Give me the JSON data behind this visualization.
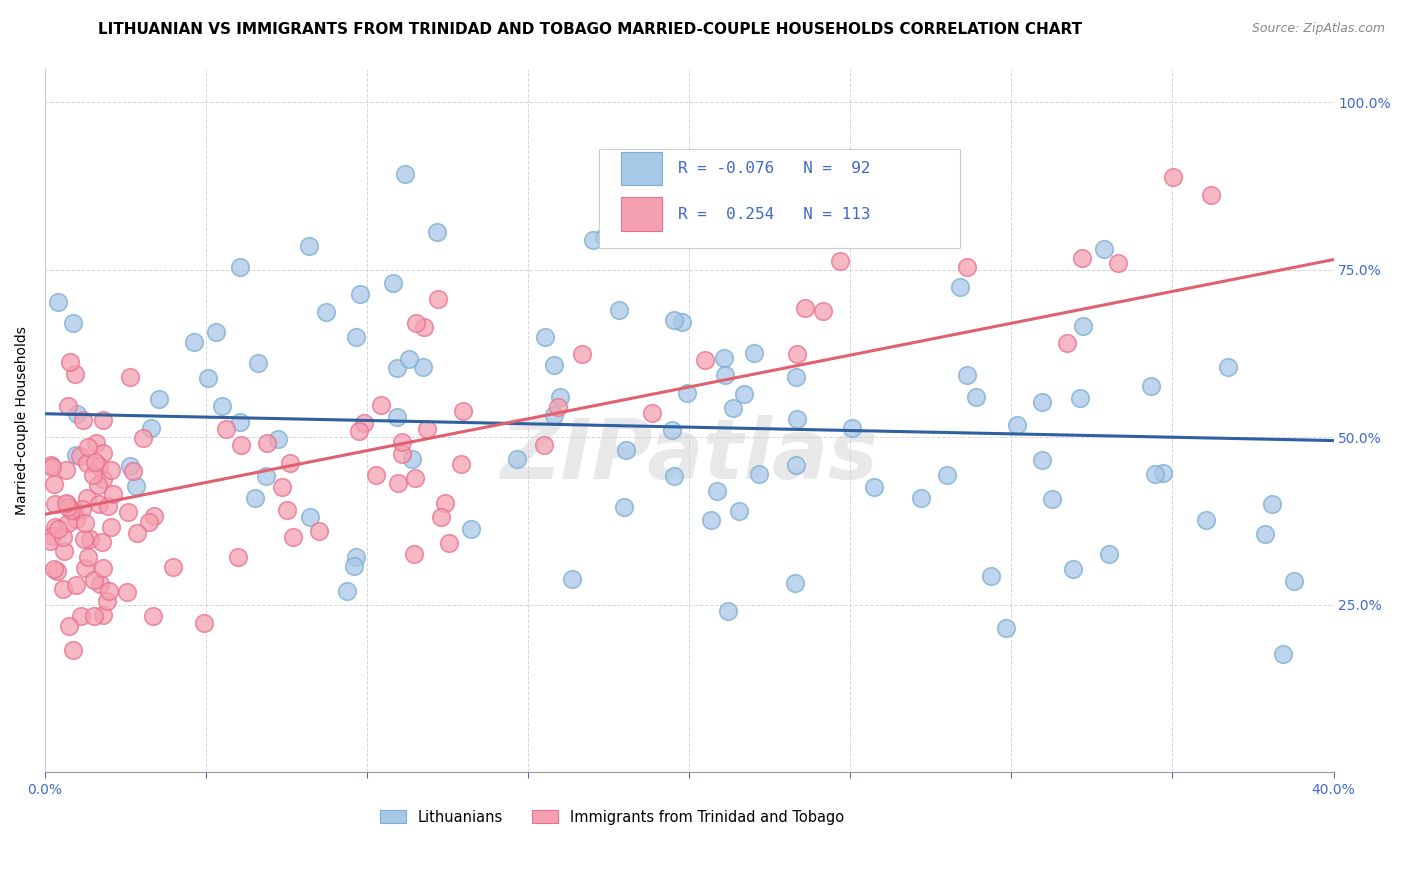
{
  "title": "LITHUANIAN VS IMMIGRANTS FROM TRINIDAD AND TOBAGO MARRIED-COUPLE HOUSEHOLDS CORRELATION CHART",
  "source": "Source: ZipAtlas.com",
  "ylabel": "Married-couple Households",
  "xmin": 0.0,
  "xmax": 0.4,
  "ymin": 0.0,
  "ymax": 1.05,
  "blue_color": "#a8c8e8",
  "pink_color": "#f4a0b0",
  "blue_edge_color": "#7aaed0",
  "pink_edge_color": "#e87090",
  "blue_line_color": "#3060a0",
  "pink_line_color": "#e06070",
  "watermark": "ZIPatlas",
  "R_blue": -0.076,
  "N_blue": 92,
  "R_pink": 0.254,
  "N_pink": 113,
  "title_fontsize": 11,
  "axis_label_fontsize": 10,
  "tick_fontsize": 10,
  "legend_fontsize": 12,
  "tick_color": "#4169cd"
}
